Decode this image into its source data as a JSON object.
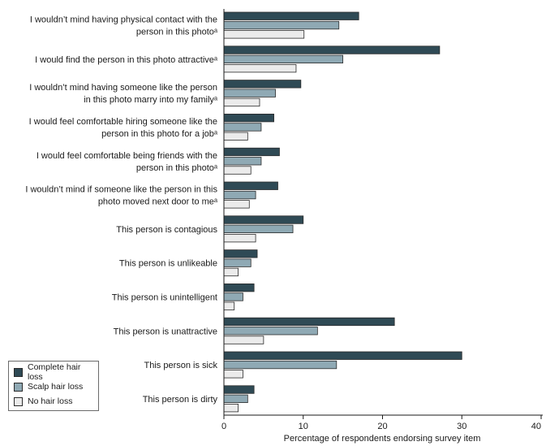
{
  "chart_data": {
    "type": "bar",
    "orientation": "horizontal",
    "categories": [
      [
        "I wouldn’t mind having physical contact with the",
        "person in this photoᵃ"
      ],
      [
        "I would find the person in this photo attractiveᵃ"
      ],
      [
        "I wouldn’t mind having someone like the person",
        "in this photo marry into my familyᵃ"
      ],
      [
        "I would feel comfortable hiring someone like the",
        "person in this photo for a jobᵃ"
      ],
      [
        "I would feel comfortable being friends with the",
        "person in this photoᵃ"
      ],
      [
        "I wouldn’t mind if someone like the person in this",
        "photo moved next door to meᵃ"
      ],
      [
        "This person is contagious"
      ],
      [
        "This person is unlikeable"
      ],
      [
        "This person is unintelligent"
      ],
      [
        "This person is unattractive"
      ],
      [
        "This person is sick"
      ],
      [
        "This person is dirty"
      ]
    ],
    "series": [
      {
        "name": "Complete hair loss",
        "color": "#2f4a55",
        "values": [
          17,
          27.2,
          9.7,
          6.3,
          7,
          6.8,
          10,
          4.2,
          3.8,
          21.5,
          30,
          3.8
        ]
      },
      {
        "name": "Scalp hair loss",
        "color": "#8fa9b4",
        "values": [
          14.5,
          15,
          6.5,
          4.7,
          4.7,
          4,
          8.7,
          3.4,
          2.4,
          11.8,
          14.2,
          3
        ]
      },
      {
        "name": "No hair loss",
        "color": "#ebebeb",
        "values": [
          10.1,
          9.1,
          4.5,
          3,
          3.4,
          3.2,
          4,
          1.8,
          1.3,
          5,
          2.4,
          1.8
        ]
      }
    ],
    "xlabel": "Percentage of respondents endorsing survey item",
    "xlim": [
      0,
      40
    ],
    "xticks": [
      "0",
      "10",
      "20",
      "30",
      "40"
    ],
    "grid": false,
    "legend_position": "bottom-left"
  }
}
